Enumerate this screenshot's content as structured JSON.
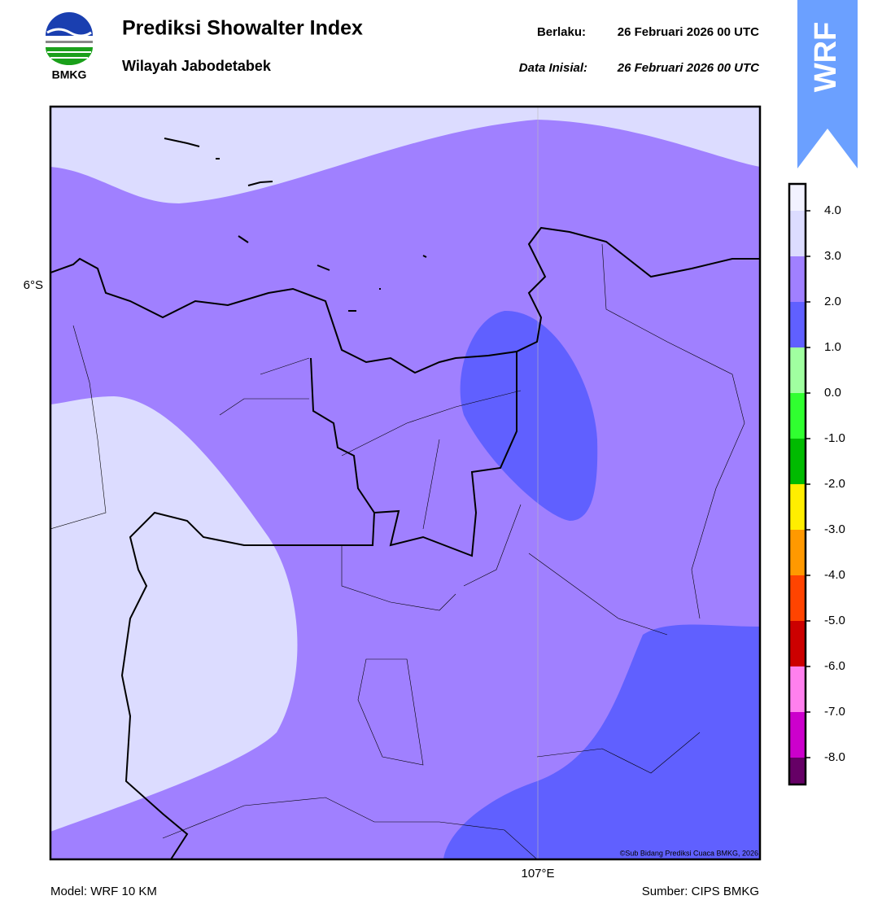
{
  "header": {
    "logo_text": "BMKG",
    "title": "Prediksi Showalter Index",
    "subtitle": "Wilayah Jabodetabek",
    "valid_label": "Berlaku:",
    "valid_time": "26 Februari 2026 00 UTC",
    "init_label": "Data Inisial:",
    "init_time": "26 Februari 2026 00 UTC"
  },
  "badge": "WRF",
  "map": {
    "lat_label": "6°S",
    "lon_label": "107°E",
    "credit": "©Sub Bidang Prediksi Cuaca BMKG, 2026"
  },
  "colorbar": {
    "ticks": [
      {
        "value": 4,
        "label": "4.0"
      },
      {
        "value": 3,
        "label": "3.0"
      },
      {
        "value": 2,
        "label": "2.0"
      },
      {
        "value": 1,
        "label": "1.0"
      },
      {
        "value": 0,
        "label": "0.0"
      },
      {
        "value": -1,
        "label": "-1.0"
      },
      {
        "value": -2,
        "label": "-2.0"
      },
      {
        "value": -3,
        "label": "-3.0"
      },
      {
        "value": -4,
        "label": "-4.0"
      },
      {
        "value": -5,
        "label": "-5.0"
      },
      {
        "value": -6,
        "label": "-6.0"
      },
      {
        "value": -7,
        "label": "-7.0"
      },
      {
        "value": -8,
        "label": "-8.0"
      }
    ],
    "colors": [
      "#f2f2ff",
      "#dcdcff",
      "#a080ff",
      "#6060ff",
      "#a0ffa0",
      "#30ff30",
      "#00bb00",
      "#ffee00",
      "#ff9900",
      "#ff4400",
      "#cc0000",
      "#ff80ee",
      "#cc00cc",
      "#660066"
    ]
  },
  "footer": {
    "model": "Model: WRF 10 KM",
    "source": "Sumber: CIPS BMKG"
  }
}
